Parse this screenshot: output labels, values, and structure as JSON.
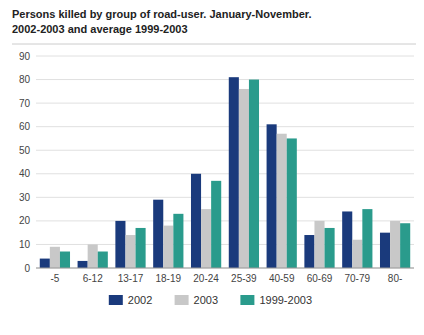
{
  "chart_data": {
    "type": "bar",
    "title": "Persons killed by group of road-user. January-November.",
    "subtitle": "2002-2003 and average 1999-2003",
    "categories": [
      "-5",
      "6-12",
      "13-17",
      "18-19",
      "20-24",
      "25-39",
      "40-59",
      "60-69",
      "70-79",
      "80-"
    ],
    "series": [
      {
        "name": "2002",
        "color": "#1a3a7c",
        "values": [
          4,
          3,
          20,
          29,
          40,
          81,
          61,
          14,
          24,
          15
        ]
      },
      {
        "name": "2003",
        "color": "#c8c8c8",
        "values": [
          9,
          10,
          14,
          18,
          25,
          76,
          57,
          20,
          12,
          20
        ]
      },
      {
        "name": "1999-2003",
        "color": "#2a9b8c",
        "values": [
          7,
          7,
          17,
          23,
          37,
          80,
          55,
          17,
          25,
          19
        ]
      }
    ],
    "ylim": [
      0,
      90
    ],
    "yticks": [
      0,
      10,
      20,
      30,
      40,
      50,
      60,
      70,
      80,
      90
    ],
    "grid": true,
    "legend": "bottom"
  }
}
